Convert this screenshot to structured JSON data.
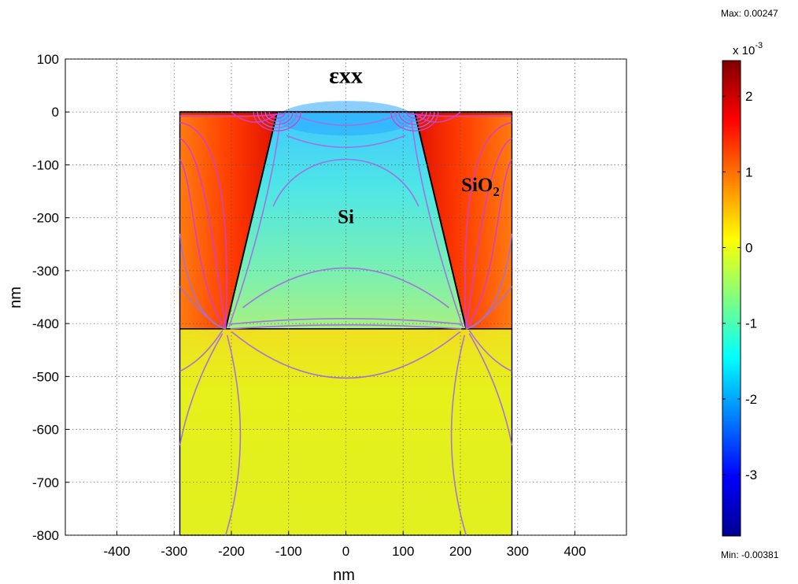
{
  "chart_data": {
    "type": "heatmap",
    "title": "",
    "xlabel": "nm",
    "ylabel": "nm",
    "xlim": [
      -490,
      490
    ],
    "ylim": [
      -800,
      100
    ],
    "x_ticks": [
      -400,
      -300,
      -200,
      -100,
      0,
      100,
      200,
      300,
      400
    ],
    "y_ticks": [
      100,
      0,
      -100,
      -200,
      -300,
      -400,
      -500,
      -600,
      -700,
      -800
    ],
    "grid": true,
    "domain": {
      "x_range": [
        -290,
        290
      ],
      "y_range": [
        -800,
        0
      ],
      "si_top_x": [
        -120,
        120
      ],
      "si_bottom_x": [
        -210,
        210
      ],
      "interface_y": -410
    },
    "annotations": [
      {
        "name": "exx",
        "text": "εxx",
        "x": 0,
        "y": 55
      },
      {
        "name": "si",
        "text": "Si",
        "x": 0,
        "y": -210
      },
      {
        "name": "sio2",
        "text": "SiO",
        "sub": "2",
        "x": 235,
        "y": -150
      }
    ],
    "colorbar": {
      "multiplier": "x 10",
      "exponent": "-3",
      "ticks": [
        2,
        1,
        0,
        -1,
        -2,
        -3
      ],
      "max_label": "Max: 0.00247",
      "min_label": "Min: -0.00381",
      "max": 0.00247,
      "min": -0.00381,
      "colormap": "jet"
    }
  }
}
